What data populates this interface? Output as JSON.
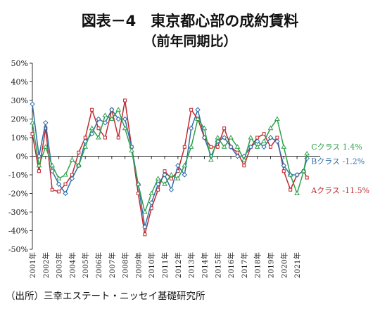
{
  "title": "図表－4　東京都心部の成約賃料",
  "subtitle": "（前年同期比）",
  "source": "（出所）三幸エステート・ニッセイ基礎研究所",
  "colors": {
    "A": "#c0272d",
    "B": "#2e6ea8",
    "C": "#2ea04a"
  },
  "chart_data": {
    "type": "line",
    "title": "図表－4　東京都心部の成約賃料",
    "subtitle": "（前年同期比）",
    "xlabel": "",
    "ylabel": "",
    "ylim": [
      -50,
      50
    ],
    "yticks": [
      "50%",
      "40%",
      "30%",
      "20%",
      "10%",
      "0%",
      "-10%",
      "-20%",
      "-30%",
      "-40%",
      "-50%"
    ],
    "xlim": [
      2001,
      2022.75
    ],
    "xticks": [
      "2001年",
      "2002年",
      "2003年",
      "2004年",
      "2005年",
      "2006年",
      "2007年",
      "2008年",
      "2009年",
      "2010年",
      "2011年",
      "2012年",
      "2013年",
      "2014年",
      "2015年",
      "2016年",
      "2017年",
      "2018年",
      "2019年",
      "2020年",
      "2021年"
    ],
    "grid": false,
    "series": [
      {
        "key": "A",
        "end_label": "Aクラス -11.5%",
        "marker": "square",
        "x": [
          2001.0,
          2001.5,
          2002.0,
          2002.5,
          2003.0,
          2003.5,
          2004.0,
          2004.5,
          2005.0,
          2005.5,
          2006.0,
          2006.5,
          2007.0,
          2007.5,
          2008.0,
          2008.5,
          2009.0,
          2009.5,
          2010.0,
          2010.5,
          2011.0,
          2011.5,
          2012.0,
          2012.5,
          2013.0,
          2013.5,
          2014.0,
          2014.5,
          2015.0,
          2015.5,
          2016.0,
          2016.5,
          2017.0,
          2017.5,
          2018.0,
          2018.5,
          2019.0,
          2019.5,
          2020.0,
          2020.5,
          2021.0,
          2021.5,
          2021.75
        ],
        "y": [
          12,
          -8,
          15,
          -18,
          -19,
          -15,
          -10,
          2,
          10,
          25,
          15,
          10,
          25,
          10,
          30,
          5,
          -20,
          -42,
          -28,
          -18,
          -8,
          -12,
          -8,
          5,
          25,
          20,
          10,
          5,
          5,
          15,
          5,
          2,
          -5,
          5,
          10,
          12,
          5,
          10,
          -8,
          -18,
          -10,
          -8,
          -11.5
        ]
      },
      {
        "key": "B",
        "end_label": "Bクラス -1.2%",
        "marker": "diamond",
        "x": [
          2001.0,
          2001.5,
          2002.0,
          2002.5,
          2003.0,
          2003.5,
          2004.0,
          2004.5,
          2005.0,
          2005.5,
          2006.0,
          2006.5,
          2007.0,
          2007.5,
          2008.0,
          2008.5,
          2009.0,
          2009.5,
          2010.0,
          2010.5,
          2011.0,
          2011.5,
          2012.0,
          2012.5,
          2013.0,
          2013.5,
          2014.0,
          2014.5,
          2015.0,
          2015.5,
          2016.0,
          2016.5,
          2017.0,
          2017.5,
          2018.0,
          2018.5,
          2019.0,
          2019.5,
          2020.0,
          2020.5,
          2021.0,
          2021.5,
          2021.75
        ],
        "y": [
          28,
          0,
          18,
          -8,
          -15,
          -20,
          -12,
          -5,
          8,
          12,
          20,
          18,
          25,
          20,
          20,
          5,
          -15,
          -38,
          -25,
          -15,
          -10,
          -18,
          -5,
          -10,
          15,
          25,
          10,
          0,
          8,
          10,
          5,
          0,
          0,
          5,
          8,
          5,
          10,
          8,
          -5,
          -10,
          -10,
          -8,
          -1.2
        ]
      },
      {
        "key": "C",
        "end_label": "Cクラス 1.4%",
        "marker": "triangle",
        "x": [
          2001.0,
          2001.5,
          2002.0,
          2002.5,
          2003.0,
          2003.5,
          2004.0,
          2004.5,
          2005.0,
          2005.5,
          2006.0,
          2006.5,
          2007.0,
          2007.5,
          2008.0,
          2008.5,
          2009.0,
          2009.5,
          2010.0,
          2010.5,
          2011.0,
          2011.5,
          2012.0,
          2012.5,
          2013.0,
          2013.5,
          2014.0,
          2014.5,
          2015.0,
          2015.5,
          2016.0,
          2016.5,
          2017.0,
          2017.5,
          2018.0,
          2018.5,
          2019.0,
          2019.5,
          2020.0,
          2020.5,
          2021.0,
          2021.5,
          2021.75
        ],
        "y": [
          18,
          -5,
          5,
          -5,
          -12,
          -10,
          -2,
          -5,
          5,
          15,
          10,
          22,
          20,
          25,
          15,
          3,
          -15,
          -30,
          -20,
          -12,
          -15,
          -10,
          -12,
          -5,
          5,
          20,
          15,
          -2,
          10,
          5,
          10,
          5,
          -2,
          10,
          5,
          8,
          15,
          20,
          5,
          -10,
          -20,
          -8,
          1.4
        ]
      }
    ]
  }
}
